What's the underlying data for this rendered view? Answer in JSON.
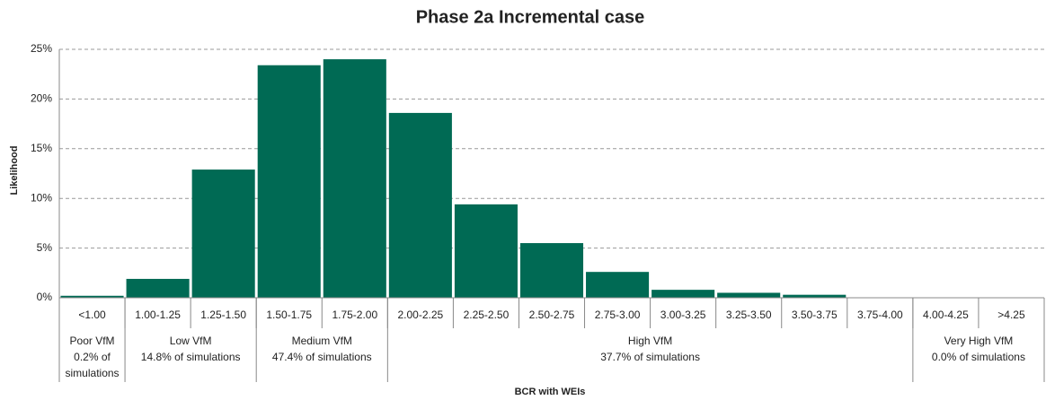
{
  "chart_data": {
    "type": "bar",
    "title": "Phase 2a Incremental case",
    "x_label": "BCR with WEIs",
    "y_label": "Likelihood",
    "categories": [
      "<1.00",
      "1.00-1.25",
      "1.25-1.50",
      "1.50-1.75",
      "1.75-2.00",
      "2.00-2.25",
      "2.25-2.50",
      "2.50-2.75",
      "2.75-3.00",
      "3.00-3.25",
      "3.25-3.50",
      "3.50-3.75",
      "3.75-4.00",
      "4.00-4.25",
      ">4.25"
    ],
    "values": [
      0.2,
      1.9,
      12.9,
      23.4,
      24.0,
      18.6,
      9.4,
      5.5,
      2.6,
      0.8,
      0.5,
      0.3,
      0.0,
      0.0,
      0.0
    ],
    "color": "#006a54",
    "ylim": [
      0,
      25
    ],
    "yticks": [
      {
        "value": 0,
        "label": "0%"
      },
      {
        "value": 5,
        "label": "5%"
      },
      {
        "value": 10,
        "label": "10%"
      },
      {
        "value": 15,
        "label": "15%"
      },
      {
        "value": 20,
        "label": "20%"
      },
      {
        "value": 25,
        "label": "25%"
      }
    ],
    "grid": true,
    "groups": [
      {
        "lines": [
          "Poor VfM",
          "0.2% of",
          "simulations"
        ]
      },
      {
        "lines": [
          "Low VfM",
          "14.8% of simulations"
        ]
      },
      {
        "lines": [
          "Medium VfM",
          "47.4% of simulations"
        ]
      },
      {
        "lines": [
          "High VfM",
          "37.7% of simulations"
        ]
      },
      {
        "lines": [
          "Very High VfM",
          "0.0% of simulations"
        ]
      }
    ]
  }
}
